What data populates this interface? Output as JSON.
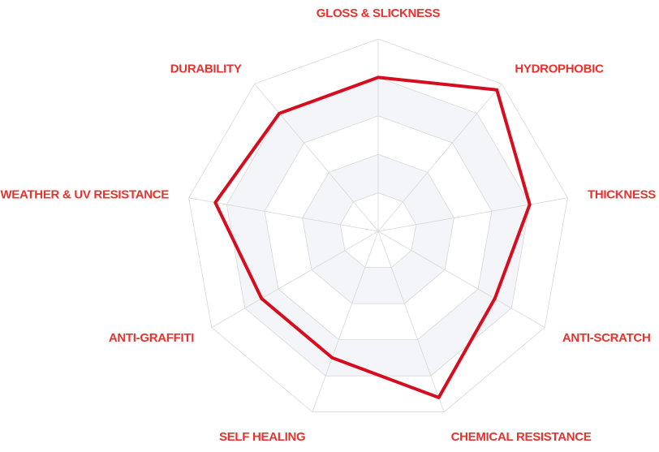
{
  "chart_data": {
    "type": "radar",
    "title": "",
    "axes": [
      "GLOSS & SLICKNESS",
      "HYDROPHOBIC",
      "THICKNESS",
      "ANTI-SCRATCH",
      "CHEMICAL RESISTANCE",
      "SELF HEALING",
      "ANTI-GRAFFITI",
      "WEATHER & UV RESISTANCE",
      "DURABILITY"
    ],
    "range": [
      0,
      5
    ],
    "grid_levels": 5,
    "grid": true,
    "legend": "none",
    "series": [
      {
        "values": [
          4,
          4.8,
          4,
          3.5,
          4.6,
          3.5,
          3.5,
          4.3,
          4
        ]
      }
    ]
  },
  "colors": {
    "series": "#d50d1e",
    "label": "#e8322e",
    "grid": "#d8d8d8",
    "band": "#f4f5f9"
  }
}
